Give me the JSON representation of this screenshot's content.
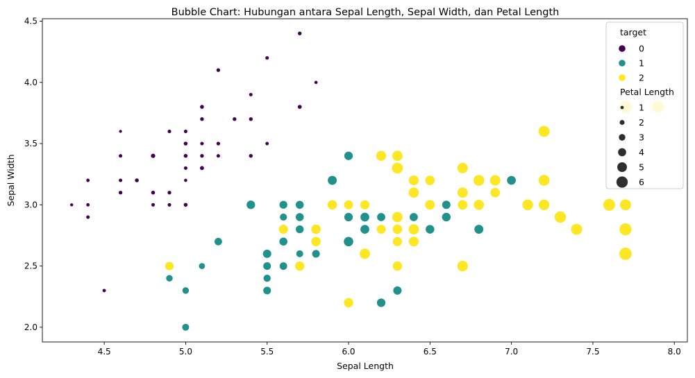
{
  "chart_data": {
    "type": "scatter",
    "title": "Bubble Chart: Hubungan antara Sepal Length, Sepal Width, dan Petal Length",
    "xlabel": "Sepal Length",
    "ylabel": "Sepal Width",
    "xlim": [
      4.12,
      8.08
    ],
    "ylim": [
      1.88,
      4.52
    ],
    "xticks": [
      "4.5",
      "5.0",
      "5.5",
      "6.0",
      "6.5",
      "7.0",
      "7.5",
      "8.0"
    ],
    "yticks": [
      "2.0",
      "2.5",
      "3.0",
      "3.5",
      "4.0",
      "4.5"
    ],
    "grid": false,
    "legend_position": "top-right",
    "hue_legend": {
      "title": "target",
      "entries": [
        {
          "label": "0",
          "color": "#440154"
        },
        {
          "label": "1",
          "color": "#21918c"
        },
        {
          "label": "2",
          "color": "#fde725"
        }
      ]
    },
    "size_legend": {
      "title": "Petal Length",
      "entries": [
        {
          "label": "1",
          "size": 1
        },
        {
          "label": "2",
          "size": 2
        },
        {
          "label": "3",
          "size": 3
        },
        {
          "label": "4",
          "size": 4
        },
        {
          "label": "5",
          "size": 5
        },
        {
          "label": "6",
          "size": 6
        }
      ]
    },
    "series": [
      {
        "name": "0",
        "color": "#440154",
        "points": [
          [
            5.1,
            3.5,
            1.4
          ],
          [
            4.9,
            3.0,
            1.4
          ],
          [
            4.7,
            3.2,
            1.3
          ],
          [
            4.6,
            3.1,
            1.5
          ],
          [
            5.0,
            3.6,
            1.4
          ],
          [
            5.4,
            3.9,
            1.7
          ],
          [
            4.6,
            3.4,
            1.4
          ],
          [
            5.0,
            3.4,
            1.5
          ],
          [
            4.4,
            2.9,
            1.4
          ],
          [
            4.9,
            3.1,
            1.5
          ],
          [
            5.4,
            3.7,
            1.5
          ],
          [
            4.8,
            3.4,
            1.6
          ],
          [
            4.8,
            3.0,
            1.4
          ],
          [
            4.3,
            3.0,
            1.1
          ],
          [
            5.8,
            4.0,
            1.2
          ],
          [
            5.7,
            4.4,
            1.5
          ],
          [
            5.4,
            3.9,
            1.3
          ],
          [
            5.1,
            3.5,
            1.4
          ],
          [
            5.7,
            3.8,
            1.7
          ],
          [
            5.1,
            3.8,
            1.5
          ],
          [
            5.4,
            3.4,
            1.7
          ],
          [
            5.1,
            3.7,
            1.5
          ],
          [
            4.6,
            3.6,
            1.0
          ],
          [
            5.1,
            3.3,
            1.7
          ],
          [
            4.8,
            3.4,
            1.9
          ],
          [
            5.0,
            3.0,
            1.6
          ],
          [
            5.0,
            3.4,
            1.6
          ],
          [
            5.2,
            3.5,
            1.5
          ],
          [
            5.2,
            3.4,
            1.4
          ],
          [
            4.7,
            3.2,
            1.6
          ],
          [
            4.8,
            3.1,
            1.6
          ],
          [
            5.4,
            3.4,
            1.5
          ],
          [
            5.2,
            4.1,
            1.5
          ],
          [
            5.5,
            4.2,
            1.4
          ],
          [
            4.9,
            3.1,
            1.5
          ],
          [
            5.0,
            3.2,
            1.2
          ],
          [
            5.5,
            3.5,
            1.3
          ],
          [
            4.9,
            3.6,
            1.4
          ],
          [
            4.4,
            3.0,
            1.3
          ],
          [
            5.1,
            3.4,
            1.5
          ],
          [
            5.0,
            3.5,
            1.3
          ],
          [
            4.5,
            2.3,
            1.3
          ],
          [
            4.4,
            3.2,
            1.3
          ],
          [
            5.0,
            3.5,
            1.6
          ],
          [
            5.1,
            3.8,
            1.9
          ],
          [
            4.8,
            3.0,
            1.4
          ],
          [
            5.1,
            3.8,
            1.6
          ],
          [
            4.6,
            3.2,
            1.4
          ],
          [
            5.3,
            3.7,
            1.5
          ],
          [
            5.0,
            3.3,
            1.4
          ]
        ]
      },
      {
        "name": "1",
        "color": "#21918c",
        "points": [
          [
            7.0,
            3.2,
            4.7
          ],
          [
            6.4,
            3.2,
            4.5
          ],
          [
            6.9,
            3.1,
            4.9
          ],
          [
            5.5,
            2.3,
            4.0
          ],
          [
            6.5,
            2.8,
            4.6
          ],
          [
            5.7,
            2.8,
            4.5
          ],
          [
            6.3,
            3.3,
            4.7
          ],
          [
            4.9,
            2.4,
            3.3
          ],
          [
            6.6,
            2.9,
            4.6
          ],
          [
            5.2,
            2.7,
            3.9
          ],
          [
            5.0,
            2.0,
            3.5
          ],
          [
            5.9,
            3.0,
            4.2
          ],
          [
            6.0,
            2.2,
            4.0
          ],
          [
            6.1,
            2.9,
            4.7
          ],
          [
            5.6,
            2.9,
            3.6
          ],
          [
            6.7,
            3.1,
            4.4
          ],
          [
            5.6,
            3.0,
            4.5
          ],
          [
            5.8,
            2.7,
            4.1
          ],
          [
            6.2,
            2.2,
            4.5
          ],
          [
            5.6,
            2.5,
            3.9
          ],
          [
            5.9,
            3.2,
            4.8
          ],
          [
            6.1,
            2.8,
            4.0
          ],
          [
            6.3,
            2.5,
            4.9
          ],
          [
            6.1,
            2.8,
            4.7
          ],
          [
            6.4,
            2.9,
            4.3
          ],
          [
            6.6,
            3.0,
            4.4
          ],
          [
            6.8,
            2.8,
            4.8
          ],
          [
            6.7,
            3.0,
            5.0
          ],
          [
            6.0,
            2.9,
            4.5
          ],
          [
            5.7,
            2.6,
            3.5
          ],
          [
            5.5,
            2.4,
            3.8
          ],
          [
            5.5,
            2.4,
            3.7
          ],
          [
            5.8,
            2.7,
            3.9
          ],
          [
            6.0,
            2.7,
            5.1
          ],
          [
            5.4,
            3.0,
            4.5
          ],
          [
            6.0,
            3.4,
            4.5
          ],
          [
            6.7,
            3.1,
            4.7
          ],
          [
            6.3,
            2.3,
            4.4
          ],
          [
            5.6,
            3.0,
            4.1
          ],
          [
            5.5,
            2.5,
            4.0
          ],
          [
            5.5,
            2.6,
            4.4
          ],
          [
            6.1,
            3.0,
            4.6
          ],
          [
            5.8,
            2.6,
            4.0
          ],
          [
            5.0,
            2.3,
            3.3
          ],
          [
            5.6,
            2.7,
            4.2
          ],
          [
            5.7,
            3.0,
            4.2
          ],
          [
            5.7,
            2.9,
            4.2
          ],
          [
            6.2,
            2.9,
            4.3
          ],
          [
            5.1,
            2.5,
            3.0
          ],
          [
            5.7,
            2.8,
            4.1
          ]
        ]
      },
      {
        "name": "2",
        "color": "#fde725",
        "points": [
          [
            6.3,
            3.3,
            6.0
          ],
          [
            5.8,
            2.7,
            5.1
          ],
          [
            7.1,
            3.0,
            5.9
          ],
          [
            6.3,
            2.9,
            5.6
          ],
          [
            6.5,
            3.0,
            5.8
          ],
          [
            7.6,
            3.0,
            6.6
          ],
          [
            4.9,
            2.5,
            4.5
          ],
          [
            7.3,
            2.9,
            6.3
          ],
          [
            6.7,
            2.5,
            5.8
          ],
          [
            7.2,
            3.6,
            6.1
          ],
          [
            6.5,
            3.2,
            5.1
          ],
          [
            6.4,
            2.7,
            5.3
          ],
          [
            6.8,
            3.0,
            5.5
          ],
          [
            5.7,
            2.5,
            5.0
          ],
          [
            5.8,
            2.8,
            5.1
          ],
          [
            6.4,
            3.2,
            5.3
          ],
          [
            6.5,
            3.0,
            5.5
          ],
          [
            7.7,
            3.8,
            6.7
          ],
          [
            7.7,
            2.6,
            6.9
          ],
          [
            6.0,
            2.2,
            5.0
          ],
          [
            6.9,
            3.2,
            5.7
          ],
          [
            5.6,
            2.8,
            4.9
          ],
          [
            7.7,
            2.8,
            6.7
          ],
          [
            6.3,
            2.7,
            4.9
          ],
          [
            6.7,
            3.3,
            5.7
          ],
          [
            7.2,
            3.2,
            6.0
          ],
          [
            6.2,
            2.8,
            4.8
          ],
          [
            6.1,
            3.0,
            4.9
          ],
          [
            6.4,
            2.8,
            5.6
          ],
          [
            7.2,
            3.0,
            5.8
          ],
          [
            7.4,
            2.8,
            6.1
          ],
          [
            7.9,
            3.8,
            6.4
          ],
          [
            6.4,
            2.8,
            5.6
          ],
          [
            6.3,
            2.8,
            5.1
          ],
          [
            6.1,
            2.6,
            5.6
          ],
          [
            7.7,
            3.0,
            6.1
          ],
          [
            6.3,
            3.4,
            5.6
          ],
          [
            6.4,
            3.1,
            5.5
          ],
          [
            6.0,
            3.0,
            4.8
          ],
          [
            6.9,
            3.1,
            5.4
          ],
          [
            6.7,
            3.1,
            5.6
          ],
          [
            6.9,
            3.1,
            5.1
          ],
          [
            5.8,
            2.7,
            5.1
          ],
          [
            6.8,
            3.2,
            5.9
          ],
          [
            6.7,
            3.3,
            5.7
          ],
          [
            6.7,
            3.0,
            5.2
          ],
          [
            6.3,
            2.5,
            5.0
          ],
          [
            6.5,
            3.0,
            5.2
          ],
          [
            6.2,
            3.4,
            5.4
          ],
          [
            5.9,
            3.0,
            5.1
          ]
        ]
      }
    ]
  }
}
